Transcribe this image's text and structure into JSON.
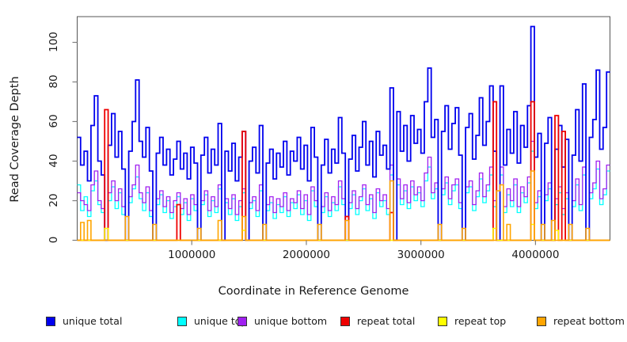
{
  "axes": {
    "x_title": "Coordinate in Reference Genome",
    "y_title": "Read Coverage Depth"
  },
  "legend": {
    "items": [
      {
        "label": "unique total",
        "color": "#0000EE"
      },
      {
        "label": "unique top",
        "color": "#00FFFF"
      },
      {
        "label": "unique bottom",
        "color": "#A020F0"
      },
      {
        "label": "repeat total",
        "color": "#EE0000"
      },
      {
        "label": "repeat top",
        "color": "#FFFF00"
      },
      {
        "label": "repeat bottom",
        "color": "#FFA500"
      }
    ]
  },
  "chart_data": {
    "type": "line",
    "style": "step",
    "title": "",
    "xlabel": "Coordinate in Reference Genome",
    "ylabel": "Read Coverage Depth",
    "xlim": [
      0,
      4650000
    ],
    "ylim": [
      0,
      113
    ],
    "x_ticks": [
      {
        "value": 1000000,
        "label": "1000000"
      },
      {
        "value": 2000000,
        "label": "2000000"
      },
      {
        "value": 3000000,
        "label": "3000000"
      },
      {
        "value": 4000000,
        "label": "4000000"
      }
    ],
    "y_ticks": [
      {
        "value": 0,
        "label": "0"
      },
      {
        "value": 20,
        "label": "20"
      },
      {
        "value": 40,
        "label": "40"
      },
      {
        "value": 60,
        "label": "60"
      },
      {
        "value": 80,
        "label": "80"
      },
      {
        "value": 100,
        "label": "100"
      }
    ],
    "grid": false,
    "legend_position": "bottom",
    "x_start": 0,
    "x_step": 30000,
    "n_bins": 155,
    "series": [
      {
        "name": "unique top",
        "color": "#00FFFF",
        "width": 1.3,
        "values": [
          28,
          15,
          22,
          12,
          25,
          30,
          18,
          14,
          0,
          20,
          27,
          16,
          24,
          13,
          0,
          19,
          26,
          32,
          21,
          15,
          24,
          12,
          0,
          18,
          23,
          14,
          20,
          11,
          17,
          22,
          13,
          19,
          10,
          21,
          15,
          0,
          18,
          23,
          12,
          20,
          14,
          26,
          0,
          19,
          13,
          21,
          10,
          17,
          24,
          0,
          16,
          20,
          12,
          25,
          0,
          15,
          19,
          11,
          18,
          14,
          22,
          12,
          19,
          16,
          23,
          13,
          20,
          10,
          25,
          17,
          0,
          14,
          22,
          12,
          19,
          15,
          27,
          18,
          0,
          16,
          23,
          13,
          20,
          26,
          15,
          21,
          11,
          24,
          17,
          20,
          13,
          33,
          0,
          28,
          18,
          25,
          16,
          27,
          20,
          24,
          17,
          30,
          37,
          21,
          26,
          0,
          23,
          29,
          18,
          25,
          28,
          16,
          0,
          24,
          27,
          15,
          22,
          31,
          19,
          25,
          33,
          17,
          0,
          33,
          14,
          23,
          17,
          28,
          14,
          24,
          19,
          29,
          45,
          16,
          22,
          0,
          20,
          26,
          0,
          18,
          24,
          13,
          21,
          0,
          17,
          28,
          15,
          33,
          0,
          21,
          26,
          36,
          18,
          23,
          35
        ]
      },
      {
        "name": "unique bottom",
        "color": "#A020F0",
        "width": 1.3,
        "values": [
          24,
          20,
          18,
          15,
          28,
          35,
          20,
          16,
          0,
          24,
          30,
          20,
          26,
          17,
          0,
          22,
          28,
          38,
          24,
          19,
          27,
          15,
          0,
          21,
          25,
          17,
          22,
          14,
          20,
          24,
          16,
          21,
          13,
          23,
          18,
          0,
          20,
          25,
          15,
          22,
          17,
          28,
          0,
          21,
          16,
          23,
          13,
          20,
          26,
          0,
          19,
          22,
          15,
          28,
          0,
          18,
          22,
          14,
          21,
          17,
          24,
          15,
          21,
          19,
          25,
          16,
          23,
          13,
          27,
          20,
          0,
          17,
          24,
          15,
          22,
          18,
          30,
          21,
          0,
          19,
          25,
          16,
          22,
          28,
          18,
          23,
          14,
          26,
          20,
          23,
          16,
          38,
          0,
          31,
          21,
          28,
          19,
          30,
          23,
          27,
          20,
          34,
          42,
          24,
          29,
          0,
          26,
          32,
          21,
          28,
          31,
          19,
          0,
          27,
          30,
          18,
          25,
          34,
          22,
          28,
          37,
          20,
          0,
          37,
          17,
          26,
          20,
          31,
          17,
          27,
          22,
          32,
          50,
          19,
          25,
          0,
          23,
          29,
          0,
          21,
          27,
          16,
          24,
          0,
          20,
          31,
          18,
          37,
          0,
          24,
          29,
          40,
          21,
          26,
          38
        ]
      },
      {
        "name": "unique total",
        "color": "#0000EE",
        "width": 1.8,
        "values": [
          52,
          38,
          45,
          30,
          58,
          73,
          40,
          33,
          0,
          48,
          64,
          42,
          55,
          36,
          0,
          45,
          60,
          81,
          50,
          42,
          57,
          35,
          0,
          44,
          52,
          38,
          46,
          33,
          41,
          50,
          36,
          44,
          31,
          47,
          39,
          0,
          43,
          52,
          34,
          46,
          38,
          59,
          0,
          45,
          35,
          49,
          30,
          42,
          55,
          0,
          40,
          47,
          34,
          58,
          0,
          39,
          46,
          31,
          44,
          37,
          50,
          33,
          45,
          40,
          52,
          36,
          48,
          30,
          57,
          42,
          0,
          38,
          51,
          34,
          46,
          39,
          62,
          44,
          0,
          41,
          53,
          35,
          47,
          60,
          38,
          50,
          32,
          55,
          43,
          48,
          36,
          77,
          0,
          65,
          45,
          58,
          40,
          63,
          49,
          56,
          44,
          70,
          87,
          52,
          61,
          0,
          55,
          68,
          46,
          59,
          67,
          43,
          0,
          57,
          64,
          41,
          53,
          72,
          48,
          60,
          78,
          45,
          0,
          78,
          38,
          56,
          44,
          65,
          39,
          58,
          47,
          68,
          108,
          42,
          54,
          0,
          49,
          62,
          0,
          46,
          58,
          37,
          51,
          0,
          43,
          66,
          40,
          79,
          0,
          52,
          61,
          86,
          46,
          57,
          85
        ]
      },
      {
        "name": "repeat total",
        "color": "#EE0000",
        "width": 1.8,
        "baseline": 0,
        "spikes": [
          [
            240000,
            66
          ],
          [
            870000,
            18
          ],
          [
            1450000,
            55
          ],
          [
            2350000,
            12
          ],
          [
            2730000,
            14
          ],
          [
            3630000,
            70
          ],
          [
            3955000,
            70
          ],
          [
            4170000,
            63
          ],
          [
            4220000,
            55
          ]
        ]
      },
      {
        "name": "repeat top",
        "color": "#FFFF00",
        "width": 1.5,
        "baseline": 0,
        "spikes": [
          [
            240000,
            6
          ],
          [
            1450000,
            5
          ],
          [
            3630000,
            6
          ],
          [
            3955000,
            8
          ],
          [
            4170000,
            5
          ]
        ]
      },
      {
        "name": "repeat bottom",
        "color": "#FFA500",
        "width": 1.6,
        "baseline": 0,
        "spikes": [
          [
            30000,
            9
          ],
          [
            90000,
            10
          ],
          [
            410000,
            12
          ],
          [
            650000,
            8
          ],
          [
            1050000,
            6
          ],
          [
            1230000,
            10
          ],
          [
            1450000,
            12
          ],
          [
            1620000,
            8
          ],
          [
            2100000,
            8
          ],
          [
            2350000,
            10
          ],
          [
            2740000,
            30
          ],
          [
            3150000,
            8
          ],
          [
            3350000,
            6
          ],
          [
            3650000,
            25
          ],
          [
            3680000,
            28
          ],
          [
            3750000,
            8
          ],
          [
            3960000,
            35
          ],
          [
            4050000,
            8
          ],
          [
            4150000,
            10
          ],
          [
            4300000,
            8
          ],
          [
            4450000,
            6
          ]
        ]
      }
    ]
  }
}
